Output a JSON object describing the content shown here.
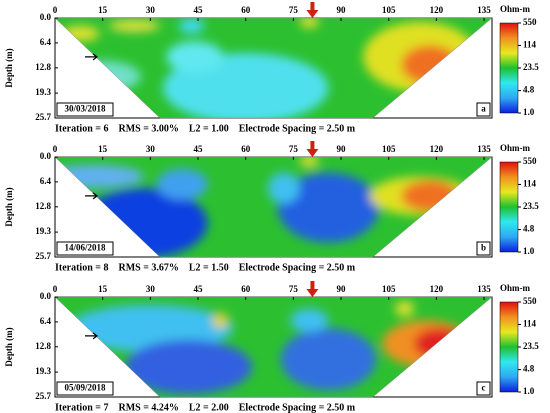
{
  "chart_data": [
    {
      "type": "resistivity-section",
      "xlim": [
        0,
        137.5
      ],
      "xticks": [
        0,
        15,
        30,
        45,
        60,
        75,
        90,
        105,
        120,
        135
      ],
      "ylim": [
        0,
        25.7
      ],
      "yticks": [
        {
          "value": 0,
          "label": "0.0"
        },
        6.4,
        12.8,
        19.3,
        25.7
      ],
      "ylabel": "Depth (m)",
      "date_label": "30/03/2018",
      "panel_label": "a",
      "caption": "Iteration = 6    RMS = 3.00%    L2 = 1.00    Electrode Spacing = 2.50 m",
      "colorbar": {
        "label": "Ohm-m",
        "scale": "log",
        "lim": [
          1,
          550
        ],
        "ticks": [
          550,
          114,
          23.5,
          4.8,
          {
            "value": 1,
            "label": "1.0"
          }
        ],
        "colors": [
          "#0a1ee0",
          "#2fa8f0",
          "#30e8f0",
          "#20c030",
          "#e8e820",
          "#f09020",
          "#e01010"
        ]
      }
    },
    {
      "type": "resistivity-section",
      "xlim": [
        0,
        137.5
      ],
      "xticks": [
        0,
        15,
        30,
        45,
        60,
        75,
        90,
        105,
        120,
        135
      ],
      "ylim": [
        0,
        25.7
      ],
      "yticks": [
        {
          "value": 0,
          "label": "0.0"
        },
        6.4,
        12.8,
        19.3,
        25.7
      ],
      "ylabel": "Depth (m)",
      "date_label": "14/06/2018",
      "panel_label": "b",
      "caption": "Iteration = 8    RMS = 3.67%    L2 = 1.50    Electrode Spacing = 2.50 m",
      "colorbar": {
        "label": "Ohm-m",
        "scale": "log",
        "lim": [
          1,
          550
        ],
        "ticks": [
          550,
          114,
          23.5,
          4.8,
          {
            "value": 1,
            "label": "1.0"
          }
        ],
        "colors": [
          "#0a1ee0",
          "#2fa8f0",
          "#30e8f0",
          "#20c030",
          "#e8e820",
          "#f09020",
          "#e01010"
        ]
      }
    },
    {
      "type": "resistivity-section",
      "xlim": [
        0,
        137.5
      ],
      "xticks": [
        0,
        15,
        30,
        45,
        60,
        75,
        90,
        105,
        120,
        135
      ],
      "ylim": [
        0,
        25.7
      ],
      "yticks": [
        {
          "value": 0,
          "label": "0.0"
        },
        6.4,
        12.8,
        19.3,
        25.7
      ],
      "ylabel": "Depth (m)",
      "date_label": "05/09/2018",
      "panel_label": "c",
      "caption": "Iteration = 7    RMS = 4.24%    L2 = 2.00    Electrode Spacing = 2.50 m",
      "colorbar": {
        "label": "Ohm-m",
        "scale": "log",
        "lim": [
          1,
          550
        ],
        "ticks": [
          550,
          114,
          23.5,
          4.8,
          {
            "value": 1,
            "label": "1.0"
          }
        ],
        "colors": [
          "#0a1ee0",
          "#2fa8f0",
          "#30e8f0",
          "#20c030",
          "#e8e820",
          "#f09020",
          "#e01010"
        ]
      }
    }
  ]
}
